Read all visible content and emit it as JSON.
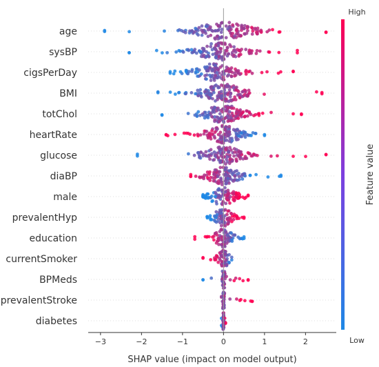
{
  "chart_data": {
    "type": "scatter",
    "subtype": "shap-beeswarm",
    "xlabel": "SHAP value (impact on model output)",
    "xlim": [
      -3.3,
      2.75
    ],
    "xticks": [
      -3,
      -2,
      -1,
      0,
      1,
      2
    ],
    "colorbar": {
      "label": "Feature value",
      "high": "High",
      "low": "Low",
      "low_color": "#1e88e5",
      "high_color": "#ff0052"
    },
    "features": [
      {
        "name": "age",
        "min": -2.9,
        "max": 2.5,
        "low_side": -1,
        "center": 0.0,
        "spread": 1.0,
        "density": 1.0
      },
      {
        "name": "sysBP",
        "min": -2.3,
        "max": 1.8,
        "low_side": -1,
        "center": -0.1,
        "spread": 0.8,
        "density": 0.95
      },
      {
        "name": "cigsPerDay",
        "min": -1.3,
        "max": 1.7,
        "low_side": -1,
        "center": -0.2,
        "spread": 0.7,
        "density": 0.9
      },
      {
        "name": "BMI",
        "min": -1.6,
        "max": 2.4,
        "low_side": -1,
        "center": 0.0,
        "spread": 0.75,
        "density": 1.0
      },
      {
        "name": "totChol",
        "min": -1.5,
        "max": 1.9,
        "low_side": -1,
        "center": 0.0,
        "spread": 0.7,
        "density": 0.95
      },
      {
        "name": "heartRate",
        "min": -1.4,
        "max": 1.0,
        "low_side": 1,
        "center": 0.0,
        "spread": 0.6,
        "density": 0.9
      },
      {
        "name": "glucose",
        "min": -2.1,
        "max": 2.5,
        "low_side": -1,
        "center": 0.0,
        "spread": 0.7,
        "density": 0.95
      },
      {
        "name": "diaBP",
        "min": -0.8,
        "max": 1.4,
        "low_side": 1,
        "center": 0.0,
        "spread": 0.55,
        "density": 0.85
      },
      {
        "name": "male",
        "min": -0.5,
        "max": 0.6,
        "low_side": -1,
        "center": 0.0,
        "spread": 0.45,
        "density": 0.7
      },
      {
        "name": "prevalentHyp",
        "min": -0.4,
        "max": 0.5,
        "low_side": -1,
        "center": 0.0,
        "spread": 0.3,
        "density": 0.55
      },
      {
        "name": "education",
        "min": -0.7,
        "max": 0.5,
        "low_side": 1,
        "center": 0.0,
        "spread": 0.3,
        "density": 0.55
      },
      {
        "name": "currentSmoker",
        "min": -0.5,
        "max": 0.2,
        "low_side": 1,
        "center": 0.0,
        "spread": 0.15,
        "density": 0.4
      },
      {
        "name": "BPMeds",
        "min": -0.5,
        "max": 0.6,
        "low_side": -1,
        "center": 0.0,
        "spread": 0.05,
        "density": 0.35
      },
      {
        "name": "prevalentStroke",
        "min": -0.05,
        "max": 0.7,
        "low_side": -1,
        "center": 0.0,
        "spread": 0.02,
        "density": 0.3
      },
      {
        "name": "diabetes",
        "min": -0.05,
        "max": 0.05,
        "low_side": -1,
        "center": 0.0,
        "spread": 0.01,
        "density": 0.3
      }
    ]
  }
}
